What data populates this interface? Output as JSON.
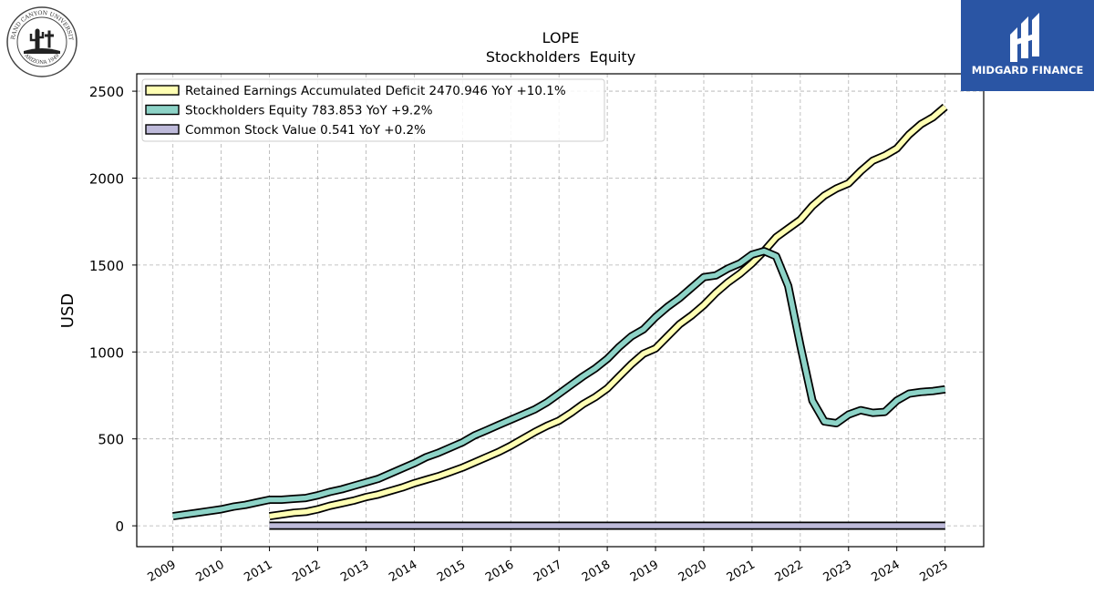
{
  "logos": {
    "university": {
      "text": "GRAND CANYON UNIVERSITY",
      "subtext": "ARIZONA 1949",
      "icon": "cactus-cross-seal-icon"
    },
    "brand": {
      "text": "MIDGARD FINANCE",
      "color": "#2a55a4",
      "icon": "midgard-mark-icon"
    }
  },
  "chart_data": {
    "type": "line",
    "title": "LOPE",
    "subtitle": "Stockholders  Equity",
    "ylabel": "USD",
    "xlabel": "",
    "ylim": [
      -120,
      2600
    ],
    "xlim": [
      2008.25,
      2025.8
    ],
    "yticks": [
      0,
      500,
      1000,
      1500,
      2000,
      2500
    ],
    "xticks": [
      "2009",
      "2010",
      "2011",
      "2012",
      "2013",
      "2014",
      "2015",
      "2016",
      "2017",
      "2018",
      "2019",
      "2020",
      "2021",
      "2022",
      "2023",
      "2024",
      "2025"
    ],
    "grid": true,
    "legend_position": "top-left",
    "series": [
      {
        "name": "Retained Earnings Accumulated Deficit",
        "legend": "Retained Earnings Accumulated Deficit  2470.946 YoY +10.1%",
        "color": "#ffffb3",
        "x": [
          2011.0,
          2011.25,
          2011.5,
          2011.75,
          2012.0,
          2012.25,
          2012.5,
          2012.75,
          2013.0,
          2013.25,
          2013.5,
          2013.75,
          2014.0,
          2014.25,
          2014.5,
          2014.75,
          2015.0,
          2015.25,
          2015.5,
          2015.75,
          2016.0,
          2016.25,
          2016.5,
          2016.75,
          2017.0,
          2017.25,
          2017.5,
          2017.75,
          2018.0,
          2018.25,
          2018.5,
          2018.75,
          2019.0,
          2019.25,
          2019.5,
          2019.75,
          2020.0,
          2020.25,
          2020.5,
          2020.75,
          2021.0,
          2021.25,
          2021.5,
          2021.75,
          2022.0,
          2022.25,
          2022.5,
          2022.75,
          2023.0,
          2023.25,
          2023.5,
          2023.75,
          2024.0,
          2024.25,
          2024.5,
          2024.75,
          2025.0
        ],
        "values": [
          55,
          65,
          75,
          80,
          95,
          115,
          130,
          145,
          165,
          180,
          200,
          220,
          245,
          265,
          285,
          310,
          335,
          365,
          395,
          425,
          460,
          500,
          540,
          575,
          605,
          650,
          700,
          740,
          790,
          860,
          930,
          990,
          1020,
          1090,
          1160,
          1210,
          1270,
          1340,
          1400,
          1450,
          1510,
          1580,
          1660,
          1710,
          1760,
          1840,
          1900,
          1940,
          1970,
          2040,
          2100,
          2130,
          2170,
          2250,
          2310,
          2350,
          2410
        ]
      },
      {
        "name": "Stockholders Equity",
        "legend": "Stockholders Equity  783.853 YoY +9.2%",
        "color": "#8dd3c7",
        "x": [
          2009.0,
          2009.25,
          2009.5,
          2009.75,
          2010.0,
          2010.25,
          2010.5,
          2010.75,
          2011.0,
          2011.25,
          2011.5,
          2011.75,
          2012.0,
          2012.25,
          2012.5,
          2012.75,
          2013.0,
          2013.25,
          2013.5,
          2013.75,
          2014.0,
          2014.25,
          2014.5,
          2014.75,
          2015.0,
          2015.25,
          2015.5,
          2015.75,
          2016.0,
          2016.25,
          2016.5,
          2016.75,
          2017.0,
          2017.25,
          2017.5,
          2017.75,
          2018.0,
          2018.25,
          2018.5,
          2018.75,
          2019.0,
          2019.25,
          2019.5,
          2019.75,
          2020.0,
          2020.25,
          2020.5,
          2020.75,
          2021.0,
          2021.25,
          2021.5,
          2021.75,
          2022.0,
          2022.25,
          2022.5,
          2022.75,
          2023.0,
          2023.25,
          2023.5,
          2023.75,
          2024.0,
          2024.25,
          2024.5,
          2024.75,
          2025.0
        ],
        "values": [
          55,
          65,
          75,
          85,
          95,
          110,
          120,
          135,
          150,
          150,
          155,
          160,
          175,
          195,
          210,
          230,
          250,
          270,
          300,
          330,
          360,
          395,
          420,
          450,
          480,
          520,
          550,
          580,
          610,
          640,
          670,
          710,
          760,
          810,
          860,
          905,
          960,
          1030,
          1090,
          1130,
          1200,
          1260,
          1310,
          1370,
          1430,
          1440,
          1480,
          1510,
          1560,
          1580,
          1550,
          1380,
          1040,
          720,
          600,
          590,
          640,
          665,
          650,
          655,
          720,
          760,
          770,
          775,
          785
        ]
      },
      {
        "name": "Common Stock Value",
        "legend": "Common Stock Value  0.541 YoY +0.2%",
        "color": "#bebada",
        "x": [
          2011.0,
          2012.0,
          2013.0,
          2014.0,
          2015.0,
          2016.0,
          2017.0,
          2018.0,
          2019.0,
          2020.0,
          2021.0,
          2022.0,
          2023.0,
          2024.0,
          2025.0
        ],
        "values": [
          0.5,
          0.5,
          0.5,
          0.5,
          0.5,
          0.5,
          0.5,
          0.5,
          0.5,
          0.5,
          0.5,
          0.5,
          0.5,
          0.5,
          0.541
        ]
      }
    ]
  }
}
